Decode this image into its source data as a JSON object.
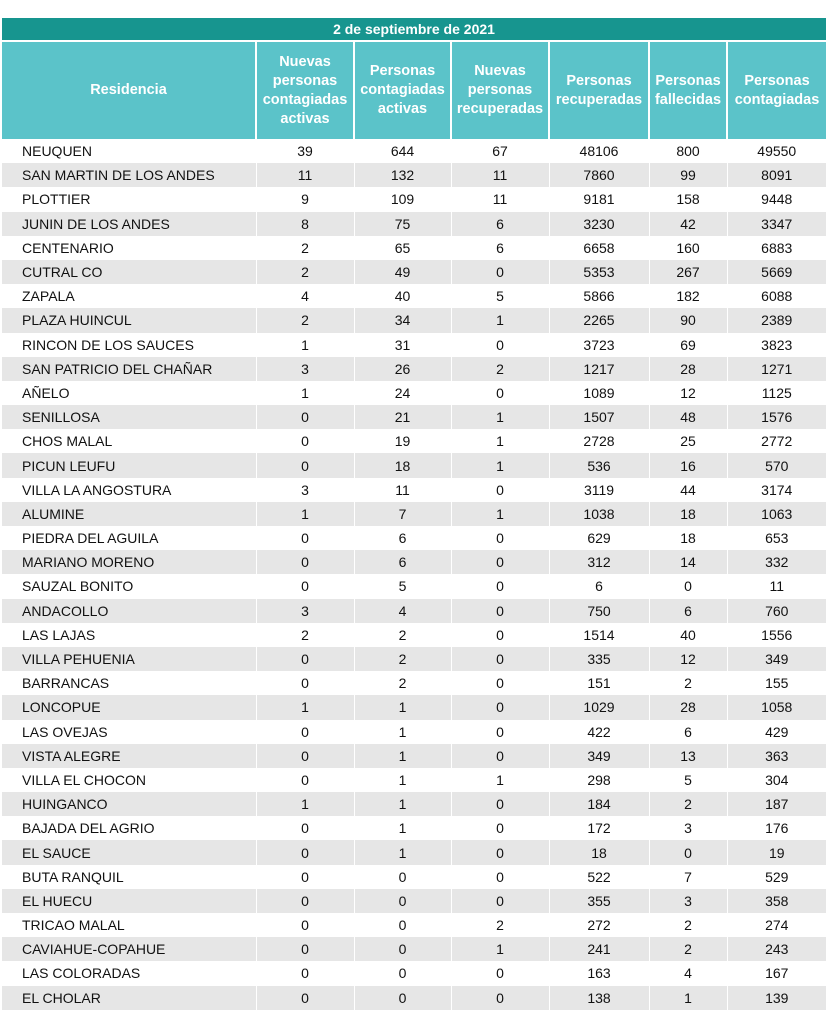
{
  "header": {
    "title": "2 de septiembre de 2021"
  },
  "table": {
    "columns": [
      "Residencia",
      "Nuevas personas contagiadas activas",
      "Personas contagiadas activas",
      "Nuevas personas recuperadas",
      "Personas recuperadas",
      "Personas fallecidas",
      "Personas contagiadas"
    ],
    "rows": [
      [
        "NEUQUEN",
        39,
        644,
        67,
        48106,
        800,
        49550
      ],
      [
        "SAN MARTIN DE LOS ANDES",
        11,
        132,
        11,
        7860,
        99,
        8091
      ],
      [
        "PLOTTIER",
        9,
        109,
        11,
        9181,
        158,
        9448
      ],
      [
        "JUNIN DE LOS ANDES",
        8,
        75,
        6,
        3230,
        42,
        3347
      ],
      [
        "CENTENARIO",
        2,
        65,
        6,
        6658,
        160,
        6883
      ],
      [
        "CUTRAL CO",
        2,
        49,
        0,
        5353,
        267,
        5669
      ],
      [
        "ZAPALA",
        4,
        40,
        5,
        5866,
        182,
        6088
      ],
      [
        "PLAZA HUINCUL",
        2,
        34,
        1,
        2265,
        90,
        2389
      ],
      [
        "RINCON DE LOS SAUCES",
        1,
        31,
        0,
        3723,
        69,
        3823
      ],
      [
        "SAN PATRICIO DEL CHAÑAR",
        3,
        26,
        2,
        1217,
        28,
        1271
      ],
      [
        "AÑELO",
        1,
        24,
        0,
        1089,
        12,
        1125
      ],
      [
        "SENILLOSA",
        0,
        21,
        1,
        1507,
        48,
        1576
      ],
      [
        "CHOS MALAL",
        0,
        19,
        1,
        2728,
        25,
        2772
      ],
      [
        "PICUN LEUFU",
        0,
        18,
        1,
        536,
        16,
        570
      ],
      [
        "VILLA LA ANGOSTURA",
        3,
        11,
        0,
        3119,
        44,
        3174
      ],
      [
        "ALUMINE",
        1,
        7,
        1,
        1038,
        18,
        1063
      ],
      [
        "PIEDRA DEL AGUILA",
        0,
        6,
        0,
        629,
        18,
        653
      ],
      [
        "MARIANO MORENO",
        0,
        6,
        0,
        312,
        14,
        332
      ],
      [
        "SAUZAL BONITO",
        0,
        5,
        0,
        6,
        0,
        11
      ],
      [
        "ANDACOLLO",
        3,
        4,
        0,
        750,
        6,
        760
      ],
      [
        "LAS LAJAS",
        2,
        2,
        0,
        1514,
        40,
        1556
      ],
      [
        "VILLA PEHUENIA",
        0,
        2,
        0,
        335,
        12,
        349
      ],
      [
        "BARRANCAS",
        0,
        2,
        0,
        151,
        2,
        155
      ],
      [
        "LONCOPUE",
        1,
        1,
        0,
        1029,
        28,
        1058
      ],
      [
        "LAS OVEJAS",
        0,
        1,
        0,
        422,
        6,
        429
      ],
      [
        "VISTA ALEGRE",
        0,
        1,
        0,
        349,
        13,
        363
      ],
      [
        "VILLA EL CHOCON",
        0,
        1,
        1,
        298,
        5,
        304
      ],
      [
        "HUINGANCO",
        1,
        1,
        0,
        184,
        2,
        187
      ],
      [
        "BAJADA DEL AGRIO",
        0,
        1,
        0,
        172,
        3,
        176
      ],
      [
        "EL SAUCE",
        0,
        1,
        0,
        18,
        0,
        19
      ],
      [
        "BUTA RANQUIL",
        0,
        0,
        0,
        522,
        7,
        529
      ],
      [
        "EL HUECU",
        0,
        0,
        0,
        355,
        3,
        358
      ],
      [
        "TRICAO MALAL",
        0,
        0,
        2,
        272,
        2,
        274
      ],
      [
        "CAVIAHUE-COPAHUE",
        0,
        0,
        1,
        241,
        2,
        243
      ],
      [
        "LAS COLORADAS",
        0,
        0,
        0,
        163,
        4,
        167
      ],
      [
        "EL CHOLAR",
        0,
        0,
        0,
        138,
        1,
        139
      ]
    ]
  }
}
